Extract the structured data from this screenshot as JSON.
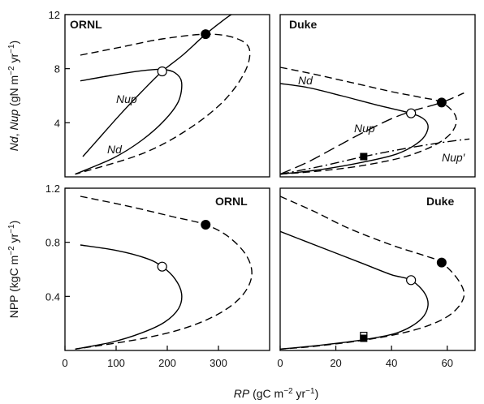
{
  "chart_data": [
    {
      "panel": "top-left",
      "type": "line",
      "title": "ORNL",
      "xlabel": "",
      "ylabel_parts": [
        "Nd",
        ", ",
        "Nup",
        " (gN m",
        "−2",
        " yr",
        "−1",
        ")"
      ],
      "xlim": [
        0,
        400
      ],
      "ylim": [
        0,
        12
      ],
      "y_ticks": [
        "4",
        "8",
        "12"
      ],
      "x_ticks": [],
      "series": [
        {
          "label": "Nup",
          "style": "solid",
          "points": [
            [
              30,
              7.1
            ],
            [
              90,
              7.5
            ],
            [
              150,
              7.85
            ],
            [
              190,
              7.95
            ],
            [
              215,
              7.7
            ],
            [
              228,
              7.0
            ],
            [
              222,
              5.6
            ],
            [
              195,
              4.2
            ],
            [
              150,
              2.7
            ],
            [
              95,
              1.4
            ],
            [
              20,
              0.2
            ]
          ]
        },
        {
          "label": "",
          "style": "dashed",
          "points": [
            [
              30,
              9.0
            ],
            [
              110,
              9.6
            ],
            [
              190,
              10.2
            ],
            [
              275,
              10.55
            ],
            [
              330,
              10.3
            ],
            [
              360,
              9.5
            ],
            [
              352,
              7.8
            ],
            [
              310,
              5.6
            ],
            [
              240,
              3.5
            ],
            [
              150,
              1.7
            ],
            [
              20,
              0.2
            ]
          ]
        },
        {
          "label": "Nd",
          "style": "solid",
          "points": [
            [
              35,
              1.5
            ],
            [
              70,
              3.0
            ],
            [
              110,
              4.7
            ],
            [
              150,
              6.3
            ],
            [
              190,
              7.8
            ],
            [
              230,
              9.0
            ],
            [
              275,
              10.55
            ],
            [
              310,
              11.6
            ],
            [
              325,
              12.0
            ]
          ]
        }
      ],
      "markers": [
        {
          "x": 190,
          "y": 7.8,
          "style": "open-circle"
        },
        {
          "x": 275,
          "y": 10.55,
          "style": "filled-circle"
        }
      ],
      "curve_labels": [
        "Nup",
        "Nd"
      ]
    },
    {
      "panel": "top-right",
      "type": "line",
      "title": "Duke",
      "xlabel": "",
      "xlim": [
        0,
        70
      ],
      "ylim": [
        0,
        12
      ],
      "y_ticks": [],
      "x_ticks": [],
      "series": [
        {
          "label": "Nup",
          "style": "solid",
          "points": [
            [
              0,
              6.9
            ],
            [
              10,
              6.6
            ],
            [
              22,
              6.0
            ],
            [
              35,
              5.3
            ],
            [
              47,
              4.7
            ],
            [
              52,
              4.2
            ],
            [
              53,
              3.5
            ],
            [
              50,
              2.6
            ],
            [
              42,
              1.7
            ],
            [
              30,
              1.1
            ],
            [
              15,
              0.55
            ],
            [
              0,
              0.2
            ]
          ]
        },
        {
          "label": "",
          "style": "dashed",
          "points": [
            [
              0,
              8.1
            ],
            [
              12,
              7.6
            ],
            [
              25,
              7.0
            ],
            [
              40,
              6.3
            ],
            [
              50,
              5.9
            ],
            [
              58,
              5.5
            ],
            [
              63,
              4.5
            ],
            [
              62,
              3.4
            ],
            [
              56,
              2.4
            ],
            [
              45,
              1.5
            ],
            [
              30,
              0.85
            ],
            [
              15,
              0.45
            ],
            [
              0,
              0.2
            ]
          ]
        },
        {
          "label": "Nd",
          "style": "long-dash",
          "points": [
            [
              0,
              0.2
            ],
            [
              10,
              1.1
            ],
            [
              20,
              2.2
            ],
            [
              30,
              3.3
            ],
            [
              40,
              4.3
            ],
            [
              48,
              4.9
            ],
            [
              58,
              5.5
            ],
            [
              66,
              6.2
            ]
          ]
        },
        {
          "label": "Nup′",
          "style": "dash-dot",
          "points": [
            [
              0,
              0.2
            ],
            [
              15,
              0.8
            ],
            [
              30,
              1.5
            ],
            [
              45,
              2.1
            ],
            [
              60,
              2.6
            ],
            [
              68,
              2.8
            ]
          ]
        }
      ],
      "markers": [
        {
          "x": 47,
          "y": 4.7,
          "style": "open-circle"
        },
        {
          "x": 58,
          "y": 5.5,
          "style": "filled-circle"
        },
        {
          "x": 30,
          "y": 1.5,
          "style": "filled-square"
        }
      ],
      "curve_labels": [
        "Nd",
        "Nup",
        "Nup′"
      ]
    },
    {
      "panel": "bottom-left",
      "type": "line",
      "title": "ORNL",
      "xlabel": "",
      "ylabel_parts": [
        "NPP (kgC m",
        "−2",
        " yr",
        "−1",
        ")"
      ],
      "xlim": [
        0,
        400
      ],
      "ylim": [
        0,
        1.2
      ],
      "y_ticks": [
        "0.4",
        "0.8",
        "1.2"
      ],
      "x_ticks": [
        "0",
        "100",
        "200",
        "300"
      ],
      "series": [
        {
          "label": "",
          "style": "solid",
          "points": [
            [
              30,
              0.78
            ],
            [
              100,
              0.74
            ],
            [
              160,
              0.68
            ],
            [
              190,
              0.62
            ],
            [
              215,
              0.53
            ],
            [
              228,
              0.42
            ],
            [
              222,
              0.31
            ],
            [
              195,
              0.21
            ],
            [
              150,
              0.13
            ],
            [
              90,
              0.06
            ],
            [
              20,
              0.01
            ]
          ]
        },
        {
          "label": "",
          "style": "dashed",
          "points": [
            [
              30,
              1.14
            ],
            [
              120,
              1.07
            ],
            [
              210,
              0.99
            ],
            [
              275,
              0.93
            ],
            [
              320,
              0.84
            ],
            [
              355,
              0.7
            ],
            [
              365,
              0.55
            ],
            [
              345,
              0.4
            ],
            [
              300,
              0.27
            ],
            [
              230,
              0.16
            ],
            [
              140,
              0.08
            ],
            [
              20,
              0.01
            ]
          ]
        }
      ],
      "markers": [
        {
          "x": 190,
          "y": 0.62,
          "style": "open-circle"
        },
        {
          "x": 275,
          "y": 0.93,
          "style": "filled-circle"
        }
      ],
      "curve_labels": []
    },
    {
      "panel": "bottom-right",
      "type": "line",
      "title": "Duke",
      "xlabel_parts": [
        "RP",
        " (gC m",
        "−2",
        " yr",
        "−1",
        ")"
      ],
      "xlim": [
        0,
        70
      ],
      "ylim": [
        0,
        1.2
      ],
      "y_ticks": [],
      "x_ticks": [
        "0",
        "20",
        "40",
        "60"
      ],
      "series": [
        {
          "label": "",
          "style": "solid",
          "points": [
            [
              0,
              0.88
            ],
            [
              10,
              0.8
            ],
            [
              20,
              0.72
            ],
            [
              30,
              0.64
            ],
            [
              40,
              0.56
            ],
            [
              47,
              0.52
            ],
            [
              52,
              0.42
            ],
            [
              53,
              0.32
            ],
            [
              50,
              0.22
            ],
            [
              42,
              0.13
            ],
            [
              30,
              0.08
            ],
            [
              15,
              0.04
            ],
            [
              0,
              0.01
            ]
          ]
        },
        {
          "label": "",
          "style": "dashed",
          "points": [
            [
              0,
              1.14
            ],
            [
              12,
              1.03
            ],
            [
              25,
              0.9
            ],
            [
              40,
              0.78
            ],
            [
              52,
              0.7
            ],
            [
              58,
              0.65
            ],
            [
              64,
              0.52
            ],
            [
              66,
              0.4
            ],
            [
              62,
              0.28
            ],
            [
              54,
              0.19
            ],
            [
              42,
              0.12
            ],
            [
              28,
              0.07
            ],
            [
              12,
              0.03
            ],
            [
              0,
              0.01
            ]
          ]
        }
      ],
      "markers": [
        {
          "x": 47,
          "y": 0.52,
          "style": "open-circle"
        },
        {
          "x": 58,
          "y": 0.65,
          "style": "filled-circle"
        },
        {
          "x": 30,
          "y": 0.11,
          "style": "open-square"
        },
        {
          "x": 30,
          "y": 0.09,
          "style": "filled-square"
        }
      ],
      "curve_labels": []
    }
  ]
}
